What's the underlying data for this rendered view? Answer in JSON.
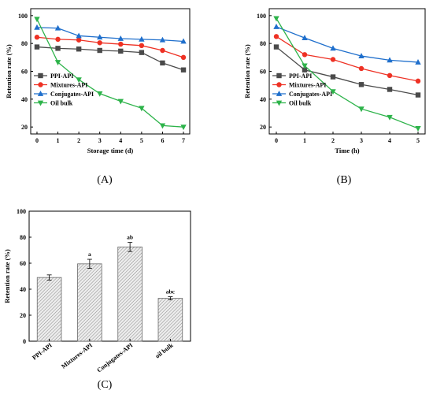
{
  "panels": [
    "(A)",
    "(B)",
    "(C)"
  ],
  "chart_data": [
    {
      "type": "line",
      "panel": "(A)",
      "xlabel": "Storage time (d)",
      "ylabel": "Retention rate (%)",
      "x": [
        0,
        1,
        2,
        3,
        4,
        5,
        6,
        7
      ],
      "xlim": [
        -0.3,
        7.3
      ],
      "ylim": [
        15,
        105
      ],
      "xticks": [
        "0",
        "1",
        "2",
        "3",
        "4",
        "5",
        "6",
        "7"
      ],
      "yticks": [
        "20",
        "40",
        "60",
        "80",
        "100"
      ],
      "legend_position": "middle-left",
      "series": [
        {
          "name": "PPI-API",
          "color": "#4a4a4a",
          "marker": "square",
          "values": [
            77.5,
            76.5,
            76,
            75,
            74.5,
            73.5,
            66,
            61
          ]
        },
        {
          "name": "Mixtures-API",
          "color": "#ee3124",
          "marker": "circle",
          "values": [
            84.5,
            83,
            82.5,
            80.5,
            79.5,
            78.5,
            75,
            70
          ]
        },
        {
          "name": "Conjugates-API",
          "color": "#1f6fcc",
          "marker": "triangle-up",
          "values": [
            91.5,
            91,
            85.5,
            84.5,
            83.5,
            83,
            82.5,
            81.5
          ]
        },
        {
          "name": "Oil bulk",
          "color": "#2db34a",
          "marker": "triangle-down",
          "values": [
            97.5,
            66.5,
            54,
            44,
            38.5,
            33.5,
            21,
            20
          ]
        }
      ]
    },
    {
      "type": "line",
      "panel": "(B)",
      "xlabel": "Time (h)",
      "ylabel": "Retention rate (%)",
      "x": [
        0,
        1,
        2,
        3,
        4,
        5
      ],
      "xlim": [
        -0.25,
        5.25
      ],
      "ylim": [
        15,
        105
      ],
      "xticks": [
        "0",
        "1",
        "2",
        "3",
        "4",
        "5"
      ],
      "yticks": [
        "20",
        "40",
        "60",
        "80",
        "100"
      ],
      "legend_position": "middle-left",
      "series": [
        {
          "name": "PPI-API",
          "color": "#4a4a4a",
          "marker": "square",
          "values": [
            77.5,
            61,
            56,
            50.5,
            47,
            43
          ]
        },
        {
          "name": "Mixtures-API",
          "color": "#ee3124",
          "marker": "circle",
          "values": [
            85,
            72,
            68.5,
            62,
            57,
            53
          ]
        },
        {
          "name": "Conjugates-API",
          "color": "#1f6fcc",
          "marker": "triangle-up",
          "values": [
            92,
            84,
            76.5,
            71,
            68,
            66.5
          ]
        },
        {
          "name": "Oil bulk",
          "color": "#2db34a",
          "marker": "triangle-down",
          "values": [
            98,
            64,
            45.5,
            33,
            27,
            19
          ]
        }
      ]
    },
    {
      "type": "bar",
      "panel": "(C)",
      "ylabel": "Retention rate (%)",
      "categories": [
        "PPI-API",
        "Mixtures-API",
        "Conjugates-API",
        "oil bulk"
      ],
      "values": [
        49,
        59.5,
        72.5,
        33
      ],
      "errors": [
        2,
        3.5,
        3.5,
        1.2
      ],
      "annotations": [
        "",
        "a",
        "ab",
        "abc"
      ],
      "ylim": [
        0,
        100
      ],
      "yticks": [
        "0",
        "20",
        "40",
        "60",
        "80",
        "100"
      ],
      "bar_fill": "#d0d0d0"
    }
  ]
}
